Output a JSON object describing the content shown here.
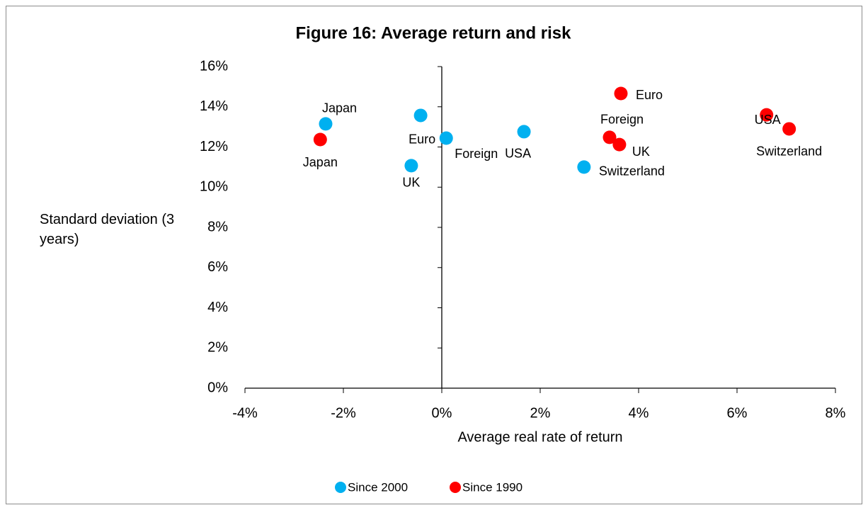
{
  "chart_data": {
    "type": "scatter",
    "title": "Figure 16: Average return and risk",
    "x_label": "Average real rate of return",
    "y_label": "Standard deviation (3 years)",
    "xlim": [
      -4,
      8
    ],
    "xticks": [
      {
        "value": -4,
        "label": "-4%"
      },
      {
        "value": -2,
        "label": "-2%"
      },
      {
        "value": 0,
        "label": "0%"
      },
      {
        "value": 2,
        "label": "2%"
      },
      {
        "value": 4,
        "label": "4%"
      },
      {
        "value": 6,
        "label": "6%"
      },
      {
        "value": 8,
        "label": "8%"
      }
    ],
    "ylim": [
      0,
      16
    ],
    "yticks": [
      {
        "value": 0,
        "label": "0%"
      },
      {
        "value": 2,
        "label": "2%"
      },
      {
        "value": 4,
        "label": "4%"
      },
      {
        "value": 6,
        "label": "6%"
      },
      {
        "value": 8,
        "label": "8%"
      },
      {
        "value": 10,
        "label": "10%"
      },
      {
        "value": 12,
        "label": "12%"
      },
      {
        "value": 14,
        "label": "14%"
      },
      {
        "value": 16,
        "label": "16%"
      }
    ],
    "grid": false,
    "legend": "bottom",
    "series": [
      {
        "name": "Since 2000",
        "color": "#00b0f0",
        "labels": [
          "Japan",
          "Euro",
          "Foreign",
          "UK",
          "USA",
          "Switzerland"
        ],
        "x": [
          -2.36,
          -0.43,
          0.09,
          -0.62,
          1.67,
          2.89
        ],
        "values": [
          13.15,
          13.57,
          12.44,
          11.07,
          12.76,
          11.0
        ]
      },
      {
        "name": "Since 1990",
        "color": "#ff0000",
        "labels": [
          "Japan",
          "Euro",
          "Foreign",
          "UK",
          "USA",
          "Switzerland"
        ],
        "x": [
          -2.47,
          3.64,
          3.41,
          3.61,
          6.6,
          7.06
        ],
        "values": [
          12.37,
          14.66,
          12.48,
          12.12,
          13.6,
          12.9
        ]
      }
    ]
  }
}
